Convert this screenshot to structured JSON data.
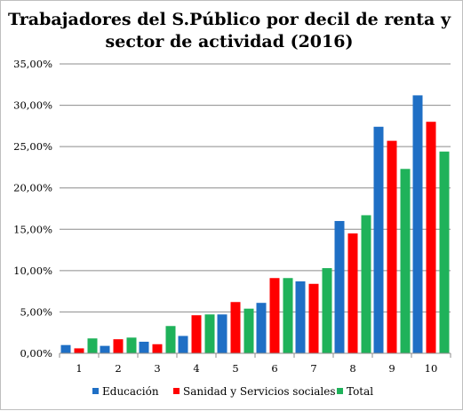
{
  "chart_data": {
    "type": "bar",
    "title_lines": [
      "Trabajadores del S.Público por decil de renta y",
      "sector de actividad (2016)"
    ],
    "categories": [
      "1",
      "2",
      "3",
      "4",
      "5",
      "6",
      "7",
      "8",
      "9",
      "10"
    ],
    "ylim": [
      0,
      35
    ],
    "y_ticks": [
      0,
      5,
      10,
      15,
      20,
      25,
      30,
      35
    ],
    "y_tick_labels": [
      "0,00%",
      "5,00%",
      "10,00%",
      "15,00%",
      "20,00%",
      "25,00%",
      "30,00%",
      "35,00%"
    ],
    "grid": true,
    "legend_position": "bottom",
    "series": [
      {
        "name": "Educación",
        "color": "#1f6fc5",
        "values": [
          1.0,
          0.9,
          1.4,
          2.1,
          4.7,
          6.1,
          8.7,
          16.0,
          27.4,
          31.2
        ]
      },
      {
        "name": "Sanidad y Servicios sociales",
        "color": "#ff0000",
        "values": [
          0.6,
          1.7,
          1.1,
          4.6,
          6.2,
          9.1,
          8.4,
          14.5,
          25.7,
          28.0
        ]
      },
      {
        "name": "Total",
        "color": "#1fb25a",
        "values": [
          1.8,
          1.9,
          3.3,
          4.7,
          5.4,
          9.1,
          10.3,
          16.7,
          22.3,
          24.4
        ]
      }
    ]
  }
}
